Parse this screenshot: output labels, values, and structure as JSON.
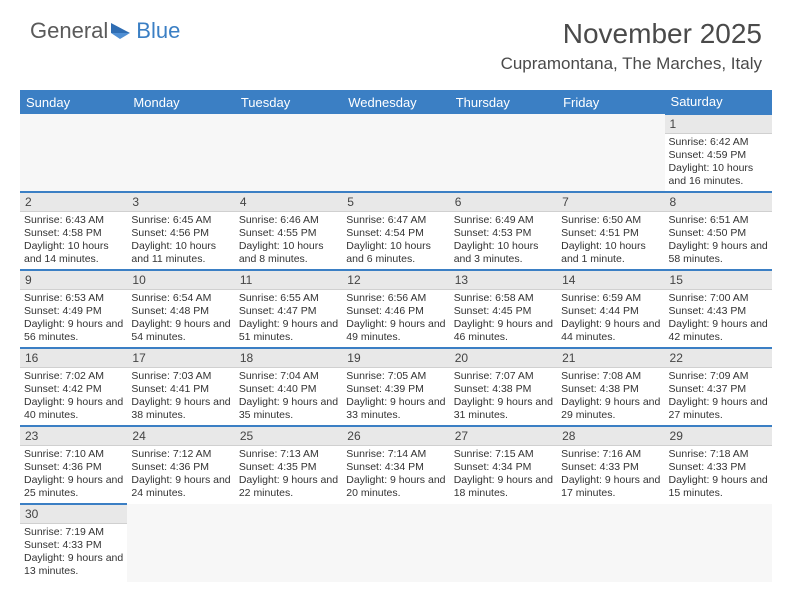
{
  "logo": {
    "text1": "General",
    "text2": "Blue"
  },
  "title": "November 2025",
  "location": "Cupramontana, The Marches, Italy",
  "colors": {
    "header_bg": "#3b7fc4",
    "header_text": "#ffffff",
    "row_divider": "#3b7fc4",
    "daynum_bg": "#e8e8e8",
    "text": "#333333"
  },
  "day_names": [
    "Sunday",
    "Monday",
    "Tuesday",
    "Wednesday",
    "Thursday",
    "Friday",
    "Saturday"
  ],
  "leading_blanks": 6,
  "days": [
    {
      "n": 1,
      "sunrise": "6:42 AM",
      "sunset": "4:59 PM",
      "daylight": "10 hours and 16 minutes."
    },
    {
      "n": 2,
      "sunrise": "6:43 AM",
      "sunset": "4:58 PM",
      "daylight": "10 hours and 14 minutes."
    },
    {
      "n": 3,
      "sunrise": "6:45 AM",
      "sunset": "4:56 PM",
      "daylight": "10 hours and 11 minutes."
    },
    {
      "n": 4,
      "sunrise": "6:46 AM",
      "sunset": "4:55 PM",
      "daylight": "10 hours and 8 minutes."
    },
    {
      "n": 5,
      "sunrise": "6:47 AM",
      "sunset": "4:54 PM",
      "daylight": "10 hours and 6 minutes."
    },
    {
      "n": 6,
      "sunrise": "6:49 AM",
      "sunset": "4:53 PM",
      "daylight": "10 hours and 3 minutes."
    },
    {
      "n": 7,
      "sunrise": "6:50 AM",
      "sunset": "4:51 PM",
      "daylight": "10 hours and 1 minute."
    },
    {
      "n": 8,
      "sunrise": "6:51 AM",
      "sunset": "4:50 PM",
      "daylight": "9 hours and 58 minutes."
    },
    {
      "n": 9,
      "sunrise": "6:53 AM",
      "sunset": "4:49 PM",
      "daylight": "9 hours and 56 minutes."
    },
    {
      "n": 10,
      "sunrise": "6:54 AM",
      "sunset": "4:48 PM",
      "daylight": "9 hours and 54 minutes."
    },
    {
      "n": 11,
      "sunrise": "6:55 AM",
      "sunset": "4:47 PM",
      "daylight": "9 hours and 51 minutes."
    },
    {
      "n": 12,
      "sunrise": "6:56 AM",
      "sunset": "4:46 PM",
      "daylight": "9 hours and 49 minutes."
    },
    {
      "n": 13,
      "sunrise": "6:58 AM",
      "sunset": "4:45 PM",
      "daylight": "9 hours and 46 minutes."
    },
    {
      "n": 14,
      "sunrise": "6:59 AM",
      "sunset": "4:44 PM",
      "daylight": "9 hours and 44 minutes."
    },
    {
      "n": 15,
      "sunrise": "7:00 AM",
      "sunset": "4:43 PM",
      "daylight": "9 hours and 42 minutes."
    },
    {
      "n": 16,
      "sunrise": "7:02 AM",
      "sunset": "4:42 PM",
      "daylight": "9 hours and 40 minutes."
    },
    {
      "n": 17,
      "sunrise": "7:03 AM",
      "sunset": "4:41 PM",
      "daylight": "9 hours and 38 minutes."
    },
    {
      "n": 18,
      "sunrise": "7:04 AM",
      "sunset": "4:40 PM",
      "daylight": "9 hours and 35 minutes."
    },
    {
      "n": 19,
      "sunrise": "7:05 AM",
      "sunset": "4:39 PM",
      "daylight": "9 hours and 33 minutes."
    },
    {
      "n": 20,
      "sunrise": "7:07 AM",
      "sunset": "4:38 PM",
      "daylight": "9 hours and 31 minutes."
    },
    {
      "n": 21,
      "sunrise": "7:08 AM",
      "sunset": "4:38 PM",
      "daylight": "9 hours and 29 minutes."
    },
    {
      "n": 22,
      "sunrise": "7:09 AM",
      "sunset": "4:37 PM",
      "daylight": "9 hours and 27 minutes."
    },
    {
      "n": 23,
      "sunrise": "7:10 AM",
      "sunset": "4:36 PM",
      "daylight": "9 hours and 25 minutes."
    },
    {
      "n": 24,
      "sunrise": "7:12 AM",
      "sunset": "4:36 PM",
      "daylight": "9 hours and 24 minutes."
    },
    {
      "n": 25,
      "sunrise": "7:13 AM",
      "sunset": "4:35 PM",
      "daylight": "9 hours and 22 minutes."
    },
    {
      "n": 26,
      "sunrise": "7:14 AM",
      "sunset": "4:34 PM",
      "daylight": "9 hours and 20 minutes."
    },
    {
      "n": 27,
      "sunrise": "7:15 AM",
      "sunset": "4:34 PM",
      "daylight": "9 hours and 18 minutes."
    },
    {
      "n": 28,
      "sunrise": "7:16 AM",
      "sunset": "4:33 PM",
      "daylight": "9 hours and 17 minutes."
    },
    {
      "n": 29,
      "sunrise": "7:18 AM",
      "sunset": "4:33 PM",
      "daylight": "9 hours and 15 minutes."
    },
    {
      "n": 30,
      "sunrise": "7:19 AM",
      "sunset": "4:33 PM",
      "daylight": "9 hours and 13 minutes."
    }
  ],
  "labels": {
    "sunrise": "Sunrise:",
    "sunset": "Sunset:",
    "daylight": "Daylight:"
  }
}
